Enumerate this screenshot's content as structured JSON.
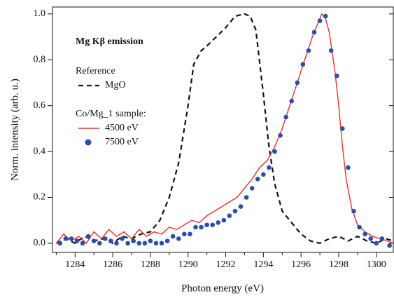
{
  "chart_data": {
    "type": "line",
    "title": "Mg Kβ emission",
    "x_label": "Photon energy (eV)",
    "y_label": "Norm. intensity (arb. u.)",
    "xlim": [
      1282.8,
      1300.9
    ],
    "ylim": [
      -0.04,
      1.03
    ],
    "xticks": [
      1284,
      1286,
      1288,
      1290,
      1292,
      1294,
      1296,
      1298,
      1300
    ],
    "xminorticks": [
      1283,
      1285,
      1287,
      1289,
      1291,
      1293,
      1295,
      1297,
      1299
    ],
    "yticks": [
      {
        "value": 0,
        "label": "0.0"
      },
      {
        "value": 0.2,
        "label": "0.2"
      },
      {
        "value": 0.4,
        "label": "0.4"
      },
      {
        "value": 0.6,
        "label": "0.6"
      },
      {
        "value": 0.8,
        "label": "0.8"
      },
      {
        "value": 1,
        "label": "1.0"
      }
    ],
    "legend_groups": [
      "Reference",
      "Co/Mg_1 sample:"
    ],
    "series": [
      {
        "name": "MgO",
        "color": "#111111",
        "dashed": true,
        "group": 0,
        "x": [
          1283.0,
          1283.5,
          1284.0,
          1284.5,
          1285.0,
          1285.5,
          1286.0,
          1286.5,
          1287.0,
          1287.5,
          1288.0,
          1288.5,
          1289.0,
          1289.5,
          1290.0,
          1290.3,
          1290.7,
          1291.0,
          1291.5,
          1292.0,
          1292.5,
          1293.0,
          1293.3,
          1293.6,
          1294.0,
          1294.3,
          1294.6,
          1295.0,
          1295.5,
          1296.0,
          1296.5,
          1297.0,
          1297.5,
          1298.0,
          1298.5,
          1299.0,
          1299.5,
          1300.0,
          1300.5,
          1300.9
        ],
        "values": [
          0.0,
          0.02,
          0.0,
          0.03,
          0.01,
          0.02,
          0.0,
          0.03,
          0.02,
          0.04,
          0.05,
          0.1,
          0.2,
          0.35,
          0.6,
          0.78,
          0.84,
          0.86,
          0.9,
          0.94,
          0.99,
          1.0,
          0.99,
          0.93,
          0.65,
          0.42,
          0.26,
          0.14,
          0.09,
          0.04,
          0.01,
          0.0,
          0.02,
          0.03,
          0.01,
          0.03,
          0.01,
          0.0,
          0.02,
          0.01
        ]
      },
      {
        "name": "4500 eV",
        "color": "#e8302a",
        "dashed": false,
        "group": 1,
        "x": [
          1283.0,
          1283.4,
          1283.8,
          1284.2,
          1284.6,
          1285.0,
          1285.4,
          1285.8,
          1286.2,
          1286.6,
          1287.0,
          1287.4,
          1287.8,
          1288.2,
          1288.6,
          1289.0,
          1289.4,
          1289.8,
          1290.2,
          1290.6,
          1291.0,
          1291.4,
          1291.8,
          1292.2,
          1292.6,
          1293.0,
          1293.4,
          1293.8,
          1294.2,
          1294.6,
          1295.0,
          1295.4,
          1295.8,
          1296.2,
          1296.6,
          1296.9,
          1297.1,
          1297.3,
          1297.5,
          1297.8,
          1298.0,
          1298.2,
          1298.4,
          1298.7,
          1299.0,
          1299.4,
          1299.8,
          1300.2,
          1300.6,
          1300.9
        ],
        "values": [
          0.0,
          0.04,
          0.01,
          0.03,
          0.0,
          0.05,
          0.02,
          0.06,
          0.03,
          0.05,
          0.02,
          0.06,
          0.03,
          0.05,
          0.04,
          0.07,
          0.06,
          0.08,
          0.1,
          0.09,
          0.12,
          0.14,
          0.16,
          0.18,
          0.2,
          0.24,
          0.28,
          0.33,
          0.36,
          0.42,
          0.5,
          0.6,
          0.7,
          0.8,
          0.9,
          0.96,
          1.0,
          0.98,
          0.92,
          0.75,
          0.6,
          0.42,
          0.28,
          0.15,
          0.08,
          0.05,
          0.03,
          0.02,
          0.01,
          0.0
        ]
      },
      {
        "name": "7500 eV",
        "color": "#2b4fa8",
        "marker": "circle",
        "group": 1,
        "x": [
          1283.2,
          1283.5,
          1283.8,
          1284.1,
          1284.4,
          1284.7,
          1285.0,
          1285.3,
          1285.6,
          1285.9,
          1286.2,
          1286.5,
          1286.8,
          1287.1,
          1287.4,
          1287.7,
          1288.0,
          1288.3,
          1288.6,
          1288.9,
          1289.2,
          1289.5,
          1289.8,
          1290.1,
          1290.4,
          1290.7,
          1291.0,
          1291.3,
          1291.6,
          1291.9,
          1292.2,
          1292.5,
          1292.8,
          1293.1,
          1293.4,
          1293.7,
          1294.0,
          1294.3,
          1294.6,
          1294.9,
          1295.2,
          1295.5,
          1295.8,
          1296.1,
          1296.4,
          1296.7,
          1297.0,
          1297.3,
          1297.6,
          1297.9,
          1298.2,
          1298.5,
          1298.8,
          1299.1,
          1299.4,
          1299.7,
          1300.0,
          1300.3,
          1300.7
        ],
        "values": [
          0.0,
          0.02,
          0.02,
          0.01,
          0.0,
          0.03,
          0.01,
          0.0,
          0.02,
          0.01,
          0.0,
          0.02,
          0.0,
          0.01,
          0.0,
          0.0,
          0.01,
          0.0,
          0.0,
          0.01,
          0.03,
          0.02,
          0.04,
          0.04,
          0.07,
          0.07,
          0.08,
          0.08,
          0.09,
          0.1,
          0.12,
          0.14,
          0.16,
          0.2,
          0.24,
          0.28,
          0.3,
          0.33,
          0.4,
          0.47,
          0.55,
          0.62,
          0.7,
          0.78,
          0.84,
          0.92,
          0.97,
          0.99,
          0.84,
          0.73,
          0.5,
          0.33,
          0.14,
          0.07,
          0.04,
          0.02,
          0.0,
          0.02,
          -0.01
        ]
      }
    ]
  }
}
